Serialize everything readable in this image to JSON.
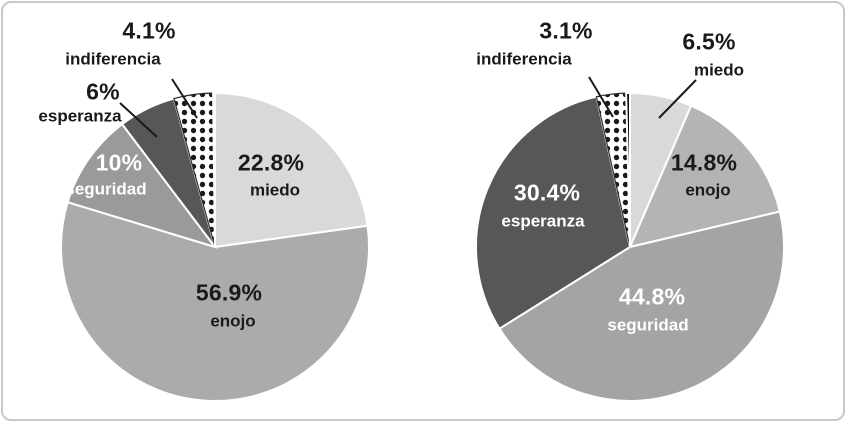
{
  "figure": {
    "description": "Two grayscale pie charts of emotions (Spanish labels)",
    "background_color": "#ffffff",
    "frame_border_color": "#c9c9c9",
    "label_text_color": "#1a1a1a",
    "inside_light_label_color": "#ffffff"
  },
  "chart_data": [
    {
      "type": "pie",
      "title": "",
      "legend": false,
      "slices": [
        {
          "name": "miedo",
          "value": 22.8,
          "pct_label": "22.8%",
          "color": "#d9d9d9",
          "label_placement": "inside"
        },
        {
          "name": "enojo",
          "value": 56.9,
          "pct_label": "56.9%",
          "color": "#ababab",
          "label_placement": "inside"
        },
        {
          "name": "seguridad",
          "value": 10,
          "pct_label": "10%",
          "color": "#9a9a9a",
          "label_placement": "inside"
        },
        {
          "name": "esperanza",
          "value": 6,
          "pct_label": "6%",
          "color": "#575757",
          "label_placement": "outside"
        },
        {
          "name": "indiferencia",
          "value": 4.1,
          "pct_label": "4.1%",
          "color": "#ffffff",
          "pattern": "dots",
          "label_placement": "outside"
        },
        {
          "name": "",
          "value": 0.2,
          "pct_label": "",
          "color": "#0d0d0d",
          "label_placement": "none"
        }
      ]
    },
    {
      "type": "pie",
      "title": "",
      "legend": false,
      "slices": [
        {
          "name": "miedo",
          "value": 6.5,
          "pct_label": "6.5%",
          "color": "#d9d9d9",
          "label_placement": "outside"
        },
        {
          "name": "enojo",
          "value": 14.8,
          "pct_label": "14.8%",
          "color": "#b4b4b4",
          "label_placement": "inside"
        },
        {
          "name": "seguridad",
          "value": 44.8,
          "pct_label": "44.8%",
          "color": "#a4a4a4",
          "label_placement": "inside"
        },
        {
          "name": "esperanza",
          "value": 30.4,
          "pct_label": "30.4%",
          "color": "#575757",
          "label_placement": "inside"
        },
        {
          "name": "indiferencia",
          "value": 3.1,
          "pct_label": "3.1%",
          "color": "#ffffff",
          "pattern": "dots",
          "label_placement": "outside"
        },
        {
          "name": "",
          "value": 0.4,
          "pct_label": "",
          "color": "#0d0d0d",
          "label_placement": "none"
        }
      ]
    }
  ]
}
